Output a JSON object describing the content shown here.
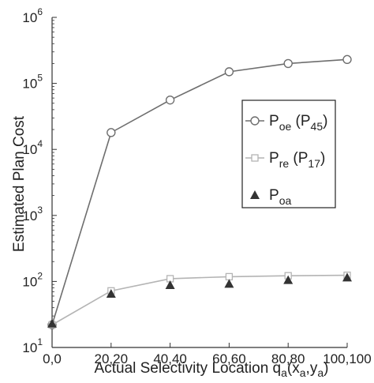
{
  "chart_data": {
    "type": "line",
    "xlabel": "Actual Selectivity Location q",
    "xlabel_sub1": "a",
    "xlabel_mid1": "(x",
    "xlabel_sub2": "a",
    "xlabel_mid2": ",y",
    "xlabel_sub3": "a",
    "xlabel_end": ")",
    "ylabel": "Estimated Plan Cost",
    "y_scale": "log",
    "ylim": [
      10,
      1000000
    ],
    "y_ticks": [
      {
        "value": 10,
        "base": "10",
        "exp": "1"
      },
      {
        "value": 100,
        "base": "10",
        "exp": "2"
      },
      {
        "value": 1000,
        "base": "10",
        "exp": "3"
      },
      {
        "value": 10000,
        "base": "10",
        "exp": "4"
      },
      {
        "value": 100000,
        "base": "10",
        "exp": "5"
      },
      {
        "value": 1000000,
        "base": "10",
        "exp": "6"
      }
    ],
    "categories": [
      "0,0",
      "20,20",
      "40,40",
      "60,60",
      "80,80",
      "100,100"
    ],
    "grid": false,
    "legend_position": "right",
    "series": [
      {
        "name_base": "P",
        "name_sub": "oe",
        "name_mid": " (P",
        "name_sub2": "45",
        "name_end": ")",
        "marker": "circle",
        "color": "#6e6e6e",
        "line": true,
        "values": [
          22,
          18000,
          56000,
          150000,
          200000,
          230000
        ]
      },
      {
        "name_base": "P",
        "name_sub": "re",
        "name_mid": " (P",
        "name_sub2": "17",
        "name_end": ")",
        "marker": "square",
        "color": "#b4b4b4",
        "line": true,
        "values": [
          22,
          72,
          110,
          118,
          122,
          124
        ]
      },
      {
        "name_base": "P",
        "name_sub": "oa",
        "name_mid": "",
        "name_sub2": "",
        "name_end": "",
        "marker": "triangle",
        "color": "#333333",
        "line": false,
        "values": [
          23,
          65,
          88,
          92,
          105,
          115
        ]
      }
    ]
  }
}
